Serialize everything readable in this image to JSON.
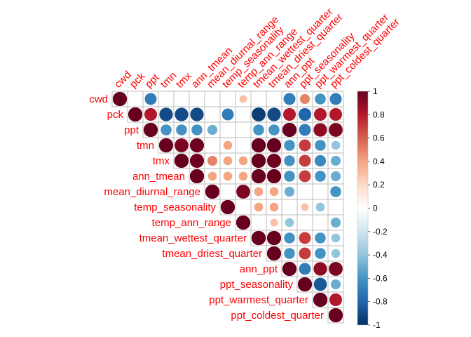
{
  "chart_data": {
    "type": "heatmap",
    "style": "corrplot-circle-upper",
    "variables": [
      "cwd",
      "pck",
      "ppt",
      "tmn",
      "tmx",
      "ann_tmean",
      "mean_diurnal_range",
      "temp_seasonality",
      "temp_ann_range",
      "tmean_wettest_quarter",
      "tmean_driest_quarter",
      "ann_ppt",
      "ppt_seasonality",
      "ppt_warmest_quarter",
      "ppt_coldest_quarter"
    ],
    "matrix": [
      [
        1,
        0,
        -0.7,
        0,
        0,
        0,
        0,
        0,
        0.3,
        0,
        0,
        -0.7,
        0.5,
        -0.6,
        -0.7
      ],
      [
        0,
        1,
        0.8,
        -0.9,
        -0.9,
        -0.9,
        0,
        -0.7,
        0,
        -0.95,
        -0.9,
        0.8,
        -0.8,
        0.8,
        0.8
      ],
      [
        -0.7,
        0.8,
        1,
        -0.6,
        -0.6,
        -0.6,
        -0.5,
        0,
        0,
        -0.6,
        -0.6,
        1,
        -0.7,
        0.9,
        0.95
      ],
      [
        0,
        -0.9,
        -0.6,
        1,
        0.95,
        0.98,
        0,
        0.4,
        0,
        1,
        1,
        -0.6,
        0.7,
        -0.6,
        -0.4
      ],
      [
        0,
        -0.9,
        -0.6,
        0.95,
        1,
        0.98,
        0.5,
        0.4,
        0.4,
        1,
        0.98,
        -0.6,
        0.7,
        -0.65,
        -0.5
      ],
      [
        0,
        -0.9,
        -0.6,
        0.98,
        0.98,
        1,
        0.4,
        0.4,
        0.4,
        1,
        1,
        -0.6,
        0.7,
        -0.6,
        -0.5
      ],
      [
        0,
        0,
        -0.5,
        0,
        0.5,
        0.4,
        1,
        0,
        0.95,
        0.4,
        0.4,
        -0.5,
        0,
        0,
        -0.6
      ],
      [
        0,
        -0.7,
        0,
        0.4,
        0.4,
        0.4,
        0,
        1,
        0,
        0.4,
        0.4,
        0,
        0.3,
        -0.4,
        0
      ],
      [
        0.3,
        0,
        0,
        0,
        0.4,
        0.4,
        0.95,
        0,
        1,
        0,
        0.3,
        -0.4,
        0,
        0,
        -0.5
      ],
      [
        0,
        -0.95,
        -0.6,
        1,
        1,
        1,
        0.4,
        0.4,
        0,
        1,
        1,
        -0.6,
        0.7,
        -0.6,
        -0.4
      ],
      [
        0,
        -0.9,
        -0.6,
        1,
        0.98,
        1,
        0.4,
        0.4,
        0.3,
        1,
        1,
        -0.6,
        0.7,
        -0.6,
        -0.4
      ],
      [
        -0.7,
        0.8,
        1,
        -0.6,
        -0.6,
        -0.6,
        -0.5,
        0,
        -0.4,
        -0.6,
        -0.6,
        1,
        -0.7,
        0.9,
        0.95
      ],
      [
        0.5,
        -0.8,
        -0.7,
        0.7,
        0.7,
        0.7,
        0,
        0.3,
        0,
        0.7,
        0.7,
        -0.7,
        1,
        -0.85,
        -0.5
      ],
      [
        -0.6,
        0.8,
        0.9,
        -0.6,
        -0.65,
        -0.6,
        0,
        -0.4,
        0,
        -0.6,
        -0.6,
        0.9,
        -0.85,
        1,
        0.8
      ],
      [
        -0.7,
        0.8,
        0.95,
        -0.4,
        -0.5,
        -0.5,
        -0.6,
        0,
        -0.5,
        -0.4,
        -0.4,
        0.95,
        -0.5,
        0.8,
        1
      ]
    ],
    "colorbar": {
      "ticks": [
        "1",
        "0.8",
        "0.6",
        "0.4",
        "0.2",
        "0",
        "-0.2",
        "-0.4",
        "-0.6",
        "-0.8",
        "-1"
      ],
      "colors": [
        "#67001F",
        "#B2182B",
        "#D6604D",
        "#F4A582",
        "#FDDBC7",
        "#FFFFFF",
        "#D1E5F0",
        "#92C5DE",
        "#4393C3",
        "#2166AC",
        "#053061"
      ]
    },
    "label_color": "#FF0000",
    "grid_color": "#BEBEBE"
  }
}
